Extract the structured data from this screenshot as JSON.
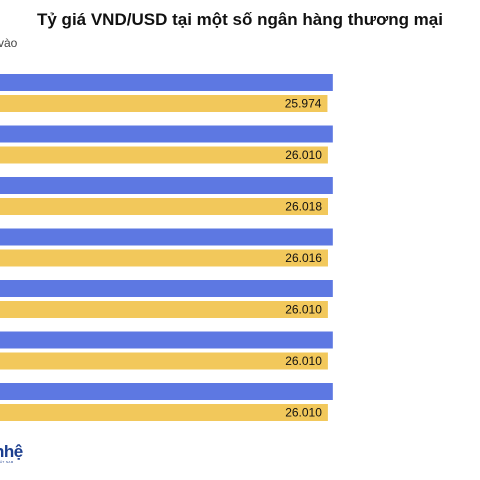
{
  "chart_data": {
    "type": "bar",
    "orientation": "horizontal",
    "title": "Tỷ giá VND/USD tại một số ngân hàng thương mại",
    "legend_partial": "a vào",
    "categories": [
      "",
      "",
      "",
      "",
      "",
      "",
      ""
    ],
    "series": [
      {
        "name": "",
        "color": "#5d78e2",
        "values": [
          26400,
          26400,
          26400,
          26400,
          26400,
          26400,
          26400
        ],
        "note_values_exceed_visible_area": true
      },
      {
        "name": "",
        "color": "#f2c85b",
        "values": [
          25974,
          26010,
          26018,
          26016,
          26010,
          26010,
          26010
        ],
        "labels": [
          "25.974",
          "26.010",
          "26.018",
          "26.016",
          "26.010",
          "26.010",
          "26.010"
        ]
      }
    ],
    "grid": false
  },
  "logo": {
    "text": "nhệ",
    "subtext": "ẤT NAM"
  }
}
